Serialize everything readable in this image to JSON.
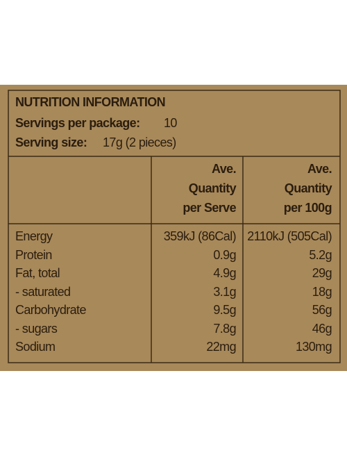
{
  "header": {
    "title": "NUTRITION INFORMATION",
    "servings_label": "Servings per package:",
    "servings_value": "10",
    "serving_size_label": "Serving size:",
    "serving_size_value": "17g (2 pieces)"
  },
  "table": {
    "columns": [
      [
        "Ave.",
        "Quantity",
        "per Serve"
      ],
      [
        "Ave.",
        "Quantity",
        "per 100g"
      ]
    ],
    "rows": [
      [
        "Energy",
        "359kJ (86Cal)",
        "2110kJ (505Cal)"
      ],
      [
        "Protein",
        "0.9g",
        "5.2g"
      ],
      [
        "Fat, total",
        "4.9g",
        "29g"
      ],
      [
        "- saturated",
        "3.1g",
        "18g"
      ],
      [
        "Carbohydrate",
        "9.5g",
        "56g"
      ],
      [
        "- sugars",
        "7.8g",
        "46g"
      ],
      [
        "Sodium",
        "22mg",
        "130mg"
      ]
    ]
  }
}
